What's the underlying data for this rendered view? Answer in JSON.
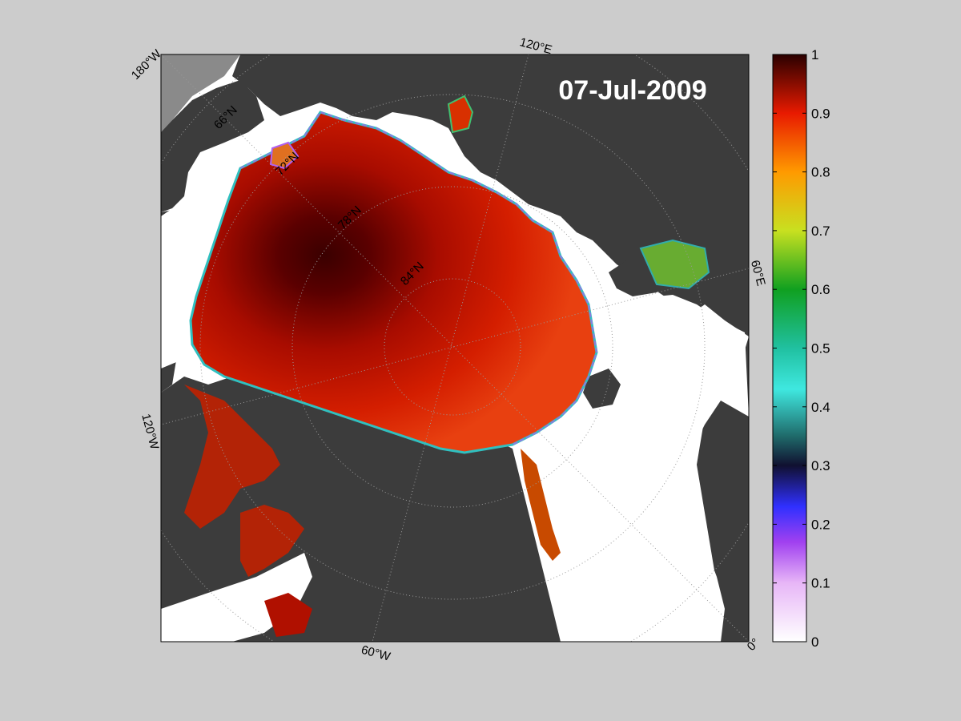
{
  "title": "07-Jul-2009",
  "map": {
    "projection": "north-polar-stereographic",
    "variable": "sea ice concentration",
    "background_ocean": "#ffffff",
    "land_color": "#3c3c3c",
    "out_of_projection_color": "#8a8a8a",
    "graticule": {
      "style": "dotted",
      "color": "#9a9a9a"
    },
    "meridian_labels": [
      "180°W",
      "120°E",
      "60°E",
      "0°",
      "60°W",
      "120°W"
    ],
    "parallel_labels": [
      "66°N",
      "72°N",
      "78°N",
      "84°N"
    ]
  },
  "colorbar": {
    "min": 0,
    "max": 1,
    "ticks": [
      "1",
      "0.9",
      "0.8",
      "0.7",
      "0.6",
      "0.5",
      "0.4",
      "0.3",
      "0.2",
      "0.1",
      "0"
    ],
    "colormap_stops": [
      {
        "value": 0.0,
        "color": "#ffffff"
      },
      {
        "value": 0.1,
        "color": "#e7b6f7"
      },
      {
        "value": 0.17,
        "color": "#a040f0"
      },
      {
        "value": 0.23,
        "color": "#3030ff"
      },
      {
        "value": 0.3,
        "color": "#101030"
      },
      {
        "value": 0.35,
        "color": "#1f6a6a"
      },
      {
        "value": 0.43,
        "color": "#3fe8e0"
      },
      {
        "value": 0.5,
        "color": "#20c0a0"
      },
      {
        "value": 0.6,
        "color": "#10a020"
      },
      {
        "value": 0.7,
        "color": "#c8e020"
      },
      {
        "value": 0.8,
        "color": "#ff9a00"
      },
      {
        "value": 0.9,
        "color": "#e81a00"
      },
      {
        "value": 1.0,
        "color": "#2a0000"
      }
    ]
  }
}
